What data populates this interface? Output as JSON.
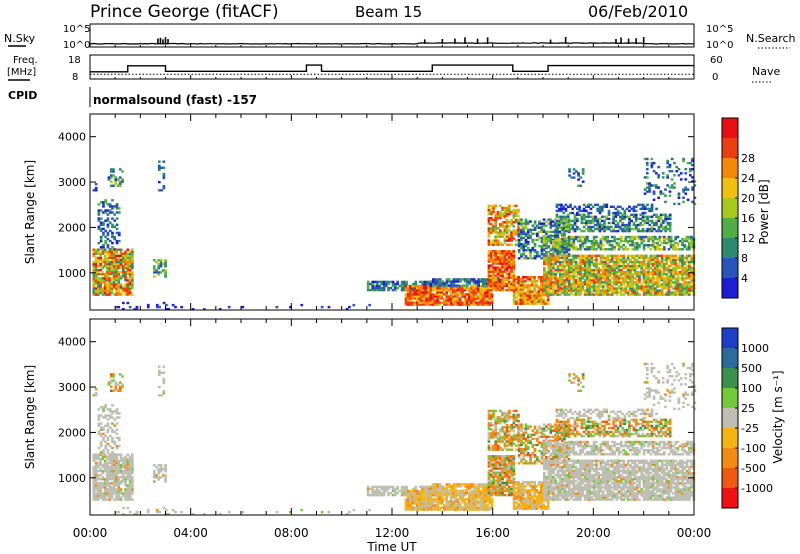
{
  "header": {
    "station": "Prince George (fitACF)",
    "beam": "Beam 15",
    "date": "06/Feb/2010"
  },
  "panel_labels": {
    "nsky": "N.Sky",
    "nsearch": "N.Search",
    "freq_line1": "Freq.",
    "freq_line2": "[MHz]",
    "nave": "Nave",
    "cpid": "CPID",
    "cpid_value": "normalsound (fast) -157"
  },
  "colors": {
    "power_scale": [
      "#1e1ed2",
      "#2a55b8",
      "#2e8a6e",
      "#4fae4a",
      "#a8c820",
      "#f0c010",
      "#f08a08",
      "#e84010",
      "#e81010"
    ],
    "velocity_scale": [
      "#1e3ec8",
      "#2f6a9c",
      "#3c8f4c",
      "#74c83c",
      "#bebeb4",
      "#f4b414",
      "#f08c14",
      "#ee5a14",
      "#ee1414"
    ],
    "ground_scatter": "#bebeb4"
  },
  "chart_data": [
    {
      "type": "line",
      "name": "noise-panel",
      "ylabel_left": "N.Sky",
      "ylabel_right": "N.Search",
      "left_ticks": [
        "10^5",
        "10^0"
      ],
      "right_ticks": [
        "10^5",
        "10^0"
      ],
      "x_hours": [
        0,
        24
      ],
      "baseline_log": 0.7
    },
    {
      "type": "line",
      "name": "freq-panel",
      "left_ticks": [
        "18",
        "8"
      ],
      "right_ticks": [
        "60",
        "0"
      ],
      "freq_steps": [
        {
          "start": 0.0,
          "end": 1.5,
          "value": 11
        },
        {
          "start": 1.5,
          "end": 3.0,
          "value": 13.5
        },
        {
          "start": 3.0,
          "end": 8.6,
          "value": 11.2
        },
        {
          "start": 8.6,
          "end": 9.2,
          "value": 13.8
        },
        {
          "start": 9.2,
          "end": 13.6,
          "value": 11.2
        },
        {
          "start": 13.6,
          "end": 16.8,
          "value": 13.8
        },
        {
          "start": 16.8,
          "end": 18.2,
          "value": 11.2
        },
        {
          "start": 18.2,
          "end": 24.0,
          "value": 13.6
        }
      ],
      "freq_ylim": [
        8,
        18
      ],
      "nave_level": 12
    },
    {
      "type": "heatmap",
      "name": "power-panel",
      "ylabel": "Slant Range [km]",
      "yticks": [
        1000,
        2000,
        3000,
        4000
      ],
      "ylim": [
        180,
        4500
      ],
      "xlim": [
        0,
        24
      ],
      "colorbar_label": "Power [dB]",
      "colorbar_ticks": [
        "4",
        "8",
        "12",
        "16",
        "20",
        "24",
        "28"
      ]
    },
    {
      "type": "heatmap",
      "name": "velocity-panel",
      "ylabel": "Slant Range [km]",
      "yticks": [
        1000,
        2000,
        3000,
        4000
      ],
      "ylim": [
        180,
        4500
      ],
      "xlim": [
        0,
        24
      ],
      "colorbar_label": "Velocity [m s⁻¹]",
      "colorbar_ticks": [
        "1000",
        "500",
        "100",
        "25",
        "-25",
        "-100",
        "-500",
        "-1000"
      ]
    }
  ],
  "x_axis": {
    "ticks": [
      "00:00",
      "04:00",
      "08:00",
      "12:00",
      "16:00",
      "20:00",
      "00:00"
    ],
    "label": "Time UT"
  }
}
